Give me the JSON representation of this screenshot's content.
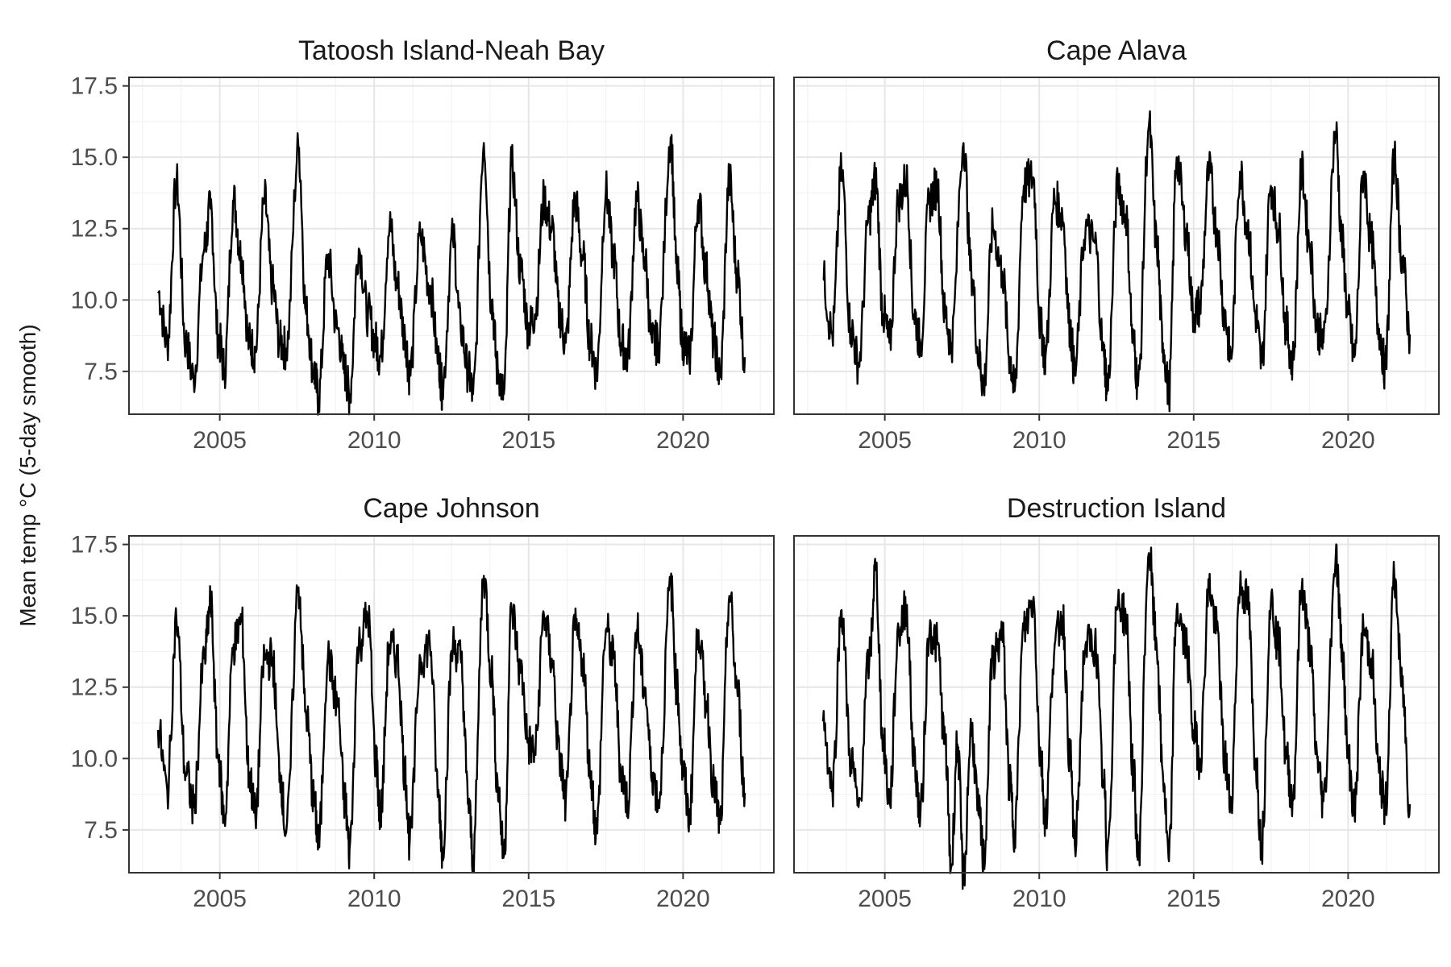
{
  "chart_data": {
    "type": "line",
    "layout": "facet-2x2",
    "ylabel": "Mean temp °C (5-day smooth)",
    "xlabel": "",
    "xlim": [
      2003,
      2022
    ],
    "ylim": [
      6.0,
      17.8
    ],
    "x_ticks": [
      2005,
      2010,
      2015,
      2020
    ],
    "x_tick_labels": [
      "2005",
      "2010",
      "2015",
      "2020"
    ],
    "y_ticks": [
      7.5,
      10.0,
      12.5,
      15.0,
      17.5
    ],
    "y_tick_labels": [
      "7.5",
      "10.0",
      "12.5",
      "15.0",
      "17.5"
    ],
    "grid": true,
    "legend": "none",
    "line_color": "#000000",
    "panels": [
      {
        "title": "Tatoosh Island-Neah Bay",
        "x": [
          2003.0,
          2003.3,
          2003.6,
          2003.9,
          2004.15,
          2004.5,
          2004.7,
          2004.95,
          2005.15,
          2005.45,
          2005.7,
          2005.95,
          2006.15,
          2006.45,
          2006.7,
          2006.95,
          2007.15,
          2007.55,
          2007.8,
          2008.05,
          2008.2,
          2008.5,
          2008.8,
          2009.05,
          2009.2,
          2009.5,
          2009.8,
          2010.05,
          2010.2,
          2010.5,
          2010.75,
          2011.0,
          2011.15,
          2011.5,
          2011.8,
          2012.1,
          2012.2,
          2012.55,
          2012.8,
          2013.05,
          2013.2,
          2013.55,
          2013.8,
          2014.0,
          2014.2,
          2014.45,
          2014.75,
          2015.0,
          2015.2,
          2015.5,
          2015.75,
          2016.0,
          2016.2,
          2016.5,
          2016.75,
          2017.0,
          2017.2,
          2017.5,
          2017.75,
          2018.0,
          2018.2,
          2018.5,
          2018.75,
          2019.0,
          2019.2,
          2019.6,
          2019.8,
          2020.0,
          2020.2,
          2020.5,
          2020.75,
          2021.0,
          2021.2,
          2021.5,
          2021.75,
          2022.0
        ],
        "y": [
          10.3,
          8.5,
          14.1,
          8.5,
          7.3,
          11.8,
          13.2,
          8.7,
          7.6,
          13.5,
          11.5,
          8.5,
          8.2,
          13.5,
          10.5,
          8.5,
          8.3,
          15.3,
          9.5,
          7.5,
          6.6,
          11.5,
          9.0,
          7.5,
          6.7,
          11.8,
          9.5,
          8.5,
          8.0,
          12.6,
          10.5,
          8.7,
          7.4,
          12.2,
          10.5,
          7.8,
          6.9,
          12.2,
          9.0,
          7.5,
          6.7,
          15.5,
          10.0,
          7.5,
          6.7,
          14.7,
          11.0,
          9.0,
          9.5,
          13.5,
          12.5,
          9.5,
          8.5,
          13.5,
          11.5,
          8.5,
          7.5,
          13.8,
          11.5,
          8.5,
          8.0,
          13.5,
          11.5,
          8.5,
          8.5,
          15.7,
          11.0,
          8.5,
          8.0,
          13.5,
          11.0,
          8.5,
          7.3,
          14.2,
          11.0,
          8.0
        ]
      },
      {
        "title": "Cape Alava",
        "x": [
          2003.0,
          2003.3,
          2003.6,
          2003.9,
          2004.15,
          2004.5,
          2004.7,
          2004.95,
          2005.15,
          2005.45,
          2005.7,
          2005.95,
          2006.15,
          2006.45,
          2006.7,
          2006.95,
          2007.15,
          2007.55,
          2007.8,
          2008.05,
          2008.2,
          2008.5,
          2008.8,
          2009.05,
          2009.2,
          2009.5,
          2009.8,
          2010.05,
          2010.2,
          2010.5,
          2010.75,
          2011.0,
          2011.15,
          2011.5,
          2011.8,
          2012.1,
          2012.2,
          2012.55,
          2012.8,
          2013.05,
          2013.2,
          2013.55,
          2013.8,
          2014.0,
          2014.2,
          2014.45,
          2014.75,
          2015.0,
          2015.2,
          2015.5,
          2015.75,
          2016.0,
          2016.2,
          2016.5,
          2016.75,
          2017.0,
          2017.2,
          2017.5,
          2017.75,
          2018.0,
          2018.2,
          2018.5,
          2018.75,
          2019.0,
          2019.2,
          2019.6,
          2019.8,
          2020.0,
          2020.2,
          2020.5,
          2020.75,
          2021.0,
          2021.2,
          2021.5,
          2021.75,
          2022.0
        ],
        "y": [
          10.7,
          8.8,
          14.5,
          9.0,
          7.8,
          13.0,
          14.2,
          9.5,
          8.5,
          13.5,
          14.2,
          9.5,
          8.5,
          13.5,
          14.0,
          9.5,
          8.5,
          15.5,
          11.0,
          8.0,
          7.0,
          12.5,
          11.0,
          8.0,
          6.8,
          14.0,
          14.3,
          9.0,
          8.0,
          13.5,
          13.0,
          9.0,
          7.5,
          12.5,
          12.0,
          8.0,
          6.9,
          14.0,
          13.0,
          8.5,
          7.0,
          16.1,
          12.0,
          8.5,
          6.8,
          15.0,
          12.5,
          9.5,
          9.8,
          14.5,
          12.5,
          9.5,
          8.0,
          14.5,
          12.5,
          9.5,
          7.8,
          14.0,
          12.5,
          9.0,
          7.8,
          14.5,
          12.0,
          9.0,
          8.5,
          15.9,
          12.0,
          9.5,
          8.0,
          14.5,
          12.0,
          9.0,
          7.6,
          14.9,
          11.5,
          8.8
        ]
      },
      {
        "title": "Cape Johnson",
        "x": [
          2003.0,
          2003.3,
          2003.6,
          2003.9,
          2004.15,
          2004.5,
          2004.7,
          2004.95,
          2005.15,
          2005.45,
          2005.7,
          2005.95,
          2006.15,
          2006.45,
          2006.7,
          2006.95,
          2007.15,
          2007.55,
          2007.8,
          2008.05,
          2008.2,
          2008.5,
          2008.8,
          2009.05,
          2009.2,
          2009.5,
          2009.8,
          2010.05,
          2010.2,
          2010.5,
          2010.75,
          2011.0,
          2011.15,
          2011.5,
          2011.8,
          2012.1,
          2012.2,
          2012.55,
          2012.8,
          2013.05,
          2013.2,
          2013.55,
          2013.8,
          2014.0,
          2014.2,
          2014.45,
          2014.75,
          2015.0,
          2015.2,
          2015.5,
          2015.75,
          2016.0,
          2016.2,
          2016.5,
          2016.75,
          2017.0,
          2017.2,
          2017.5,
          2017.75,
          2018.0,
          2018.2,
          2018.5,
          2018.75,
          2019.0,
          2019.2,
          2019.6,
          2019.8,
          2020.0,
          2020.2,
          2020.5,
          2020.75,
          2021.0,
          2021.2,
          2021.5,
          2021.75,
          2022.0
        ],
        "y": [
          11.0,
          8.9,
          14.8,
          9.5,
          8.3,
          13.5,
          15.4,
          10.0,
          7.9,
          14.0,
          14.8,
          9.5,
          8.0,
          13.5,
          13.5,
          9.5,
          7.4,
          16.0,
          11.5,
          8.5,
          7.0,
          13.5,
          12.0,
          8.5,
          6.8,
          14.0,
          15.0,
          10.0,
          8.0,
          14.0,
          13.5,
          9.5,
          7.1,
          13.5,
          14.0,
          8.5,
          6.9,
          14.0,
          13.5,
          8.5,
          6.6,
          16.4,
          13.0,
          9.0,
          6.6,
          15.2,
          13.0,
          10.5,
          10.2,
          15.0,
          13.5,
          10.0,
          8.5,
          14.5,
          13.5,
          9.5,
          7.4,
          14.5,
          13.5,
          9.5,
          8.5,
          14.5,
          12.5,
          9.5,
          8.5,
          16.1,
          12.5,
          9.5,
          8.0,
          14.5,
          12.0,
          9.0,
          7.7,
          15.7,
          12.5,
          8.8
        ]
      },
      {
        "title": "Destruction Island",
        "x": [
          2003.0,
          2003.3,
          2003.6,
          2003.9,
          2004.15,
          2004.5,
          2004.7,
          2004.95,
          2005.15,
          2005.45,
          2005.7,
          2005.95,
          2006.15,
          2006.45,
          2006.7,
          2006.95,
          2007.15,
          2007.35,
          2007.55,
          2007.8,
          2008.05,
          2008.2,
          2008.5,
          2008.8,
          2009.05,
          2009.2,
          2009.5,
          2009.8,
          2010.05,
          2010.2,
          2010.5,
          2010.75,
          2011.0,
          2011.15,
          2011.5,
          2011.8,
          2012.1,
          2012.2,
          2012.55,
          2012.8,
          2013.05,
          2013.2,
          2013.55,
          2013.8,
          2014.0,
          2014.2,
          2014.45,
          2014.75,
          2015.0,
          2015.2,
          2015.5,
          2015.75,
          2016.0,
          2016.2,
          2016.5,
          2016.75,
          2017.0,
          2017.2,
          2017.5,
          2017.75,
          2018.0,
          2018.2,
          2018.5,
          2018.75,
          2019.0,
          2019.2,
          2019.6,
          2019.8,
          2020.0,
          2020.2,
          2020.5,
          2020.75,
          2021.0,
          2021.2,
          2021.5,
          2021.75,
          2022.0
        ],
        "y": [
          11.3,
          9.0,
          15.2,
          10.0,
          8.3,
          13.5,
          16.6,
          10.5,
          8.5,
          14.5,
          15.3,
          10.0,
          8.0,
          14.5,
          14.0,
          10.5,
          6.2,
          10.5,
          5.9,
          11.0,
          8.0,
          6.5,
          13.5,
          14.3,
          9.0,
          7.5,
          14.5,
          15.5,
          10.0,
          7.9,
          14.0,
          15.0,
          10.0,
          7.0,
          14.0,
          14.0,
          9.0,
          6.7,
          15.5,
          15.0,
          9.5,
          6.5,
          17.2,
          14.0,
          9.5,
          6.4,
          15.2,
          14.0,
          11.0,
          10.0,
          16.0,
          14.5,
          10.0,
          8.5,
          16.0,
          15.5,
          10.0,
          7.0,
          15.5,
          14.0,
          10.0,
          8.5,
          16.0,
          14.0,
          10.0,
          8.5,
          17.1,
          14.0,
          10.0,
          8.2,
          14.5,
          13.5,
          9.5,
          8.3,
          16.3,
          12.5,
          8.4
        ]
      }
    ]
  }
}
